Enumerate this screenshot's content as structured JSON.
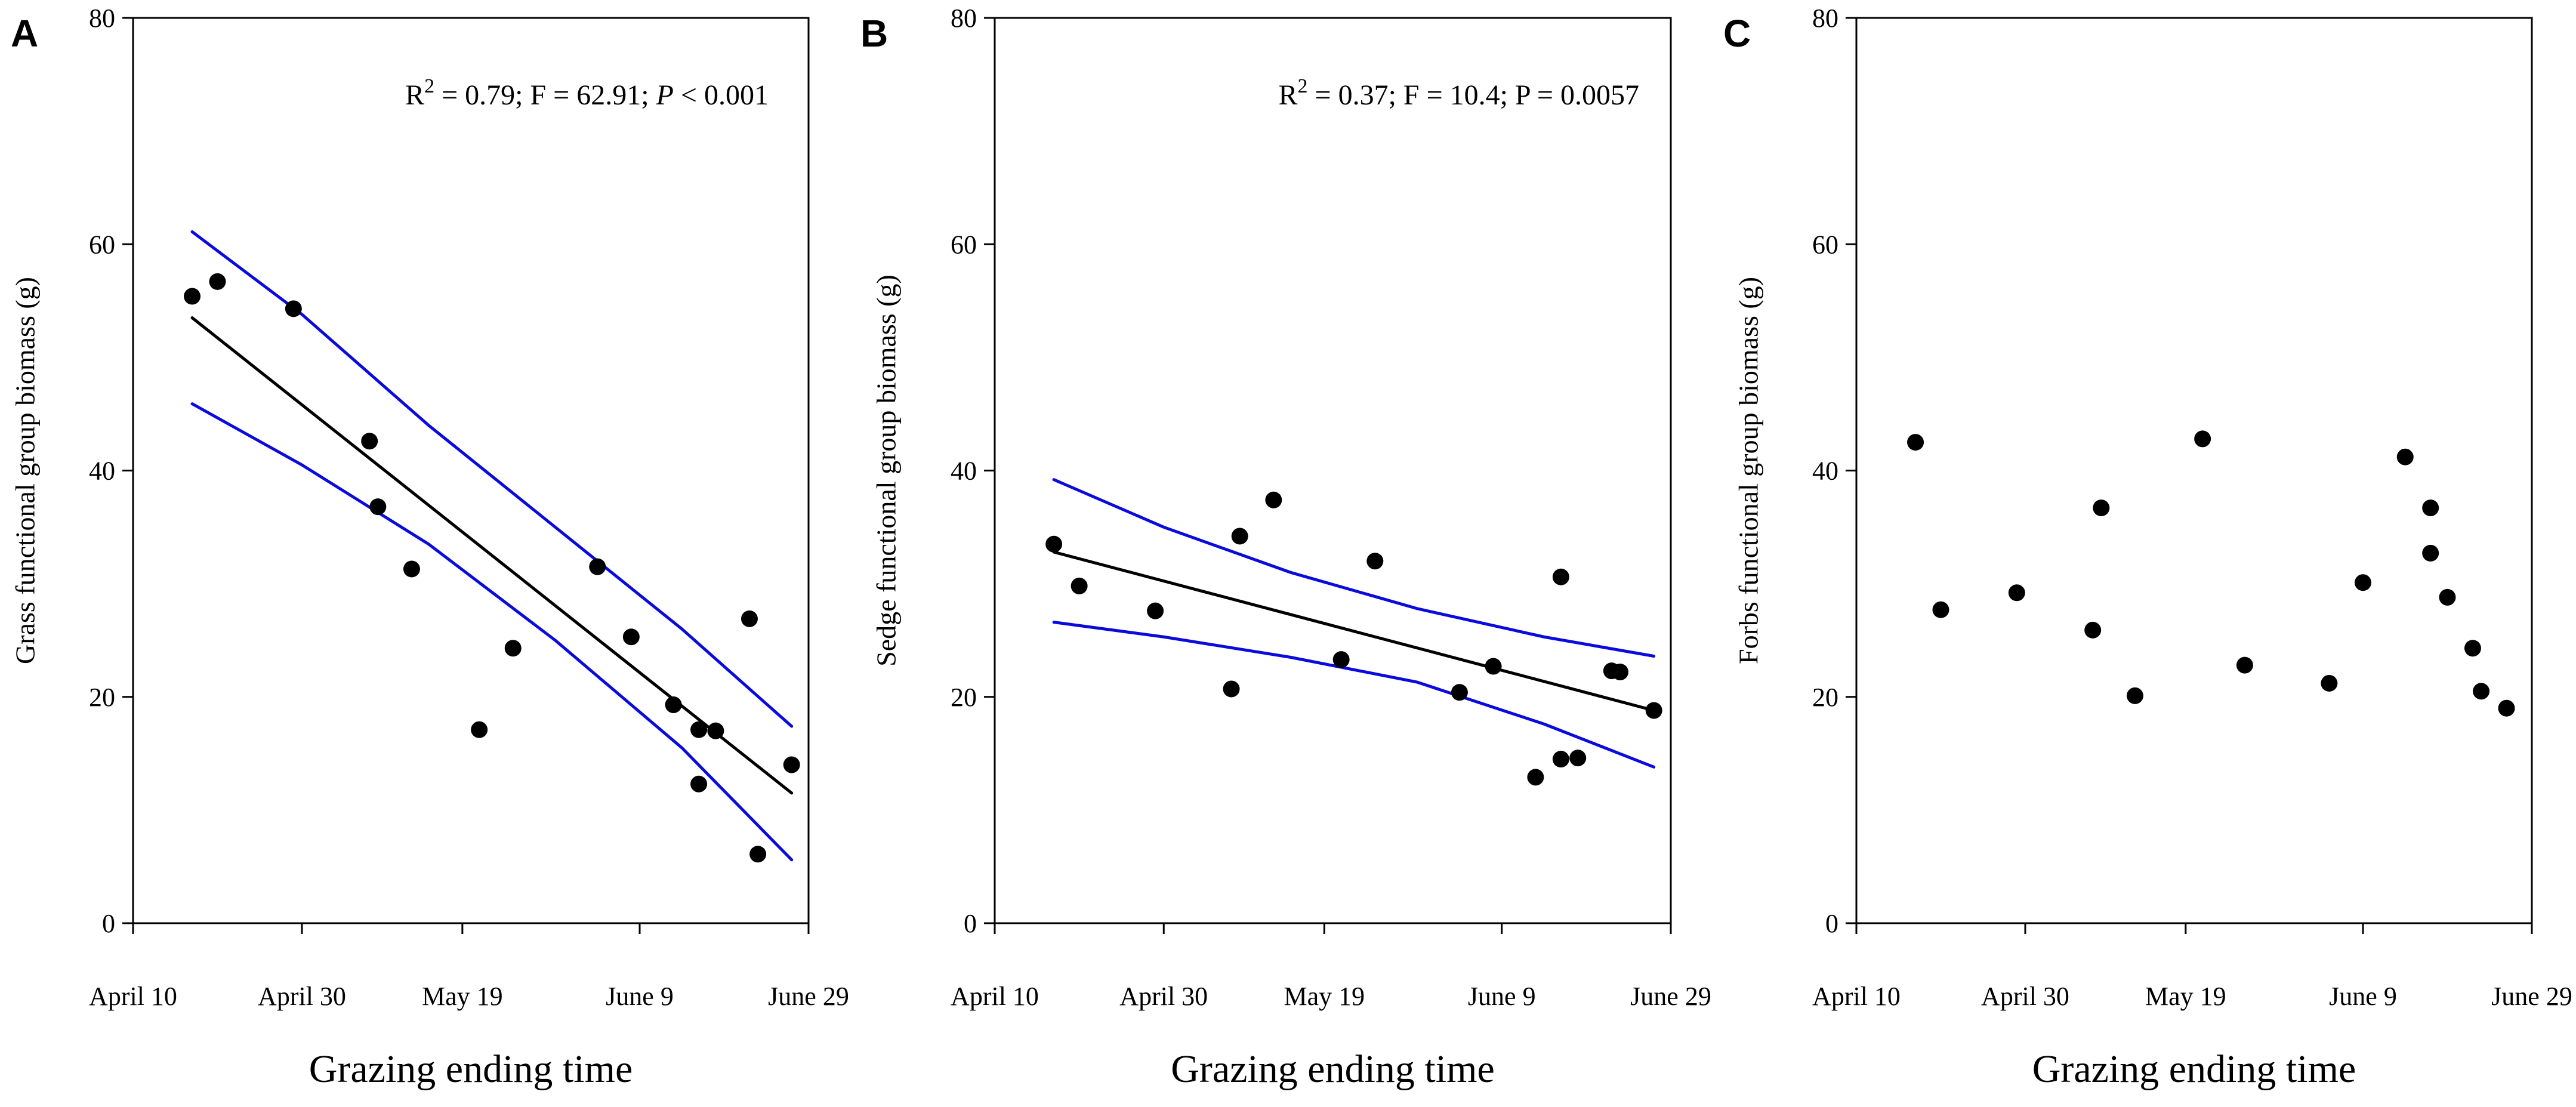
{
  "figure": {
    "xlabel": "Grazing ending time",
    "x_tick_labels": [
      "April 10",
      "April 30",
      "May 19",
      "June 9",
      "June 29"
    ],
    "y_tick_labels": [
      "0",
      "20",
      "40",
      "60",
      "80"
    ]
  },
  "chart_data": [
    {
      "panel": "A",
      "type": "scatter",
      "title": "",
      "xlabel": "Grazing ending time",
      "ylabel": "Grass functional group biomass (g)",
      "xlim": [
        0,
        80
      ],
      "ylim": [
        0,
        80
      ],
      "x_ticks": [
        0,
        20,
        39,
        60,
        80
      ],
      "y_ticks": [
        0,
        20,
        40,
        60,
        80
      ],
      "stats": {
        "r2_label": "R",
        "r2_sup": "2",
        "r2_rest": " = 0.79; F = 62.91; ",
        "p_label": "P",
        "p_rest": " < 0.001"
      },
      "points": [
        {
          "x": 7,
          "y": 55.4
        },
        {
          "x": 10,
          "y": 56.7
        },
        {
          "x": 19,
          "y": 54.3
        },
        {
          "x": 28,
          "y": 42.6
        },
        {
          "x": 29,
          "y": 36.8
        },
        {
          "x": 33,
          "y": 31.3
        },
        {
          "x": 41,
          "y": 17.1
        },
        {
          "x": 45,
          "y": 24.3
        },
        {
          "x": 55,
          "y": 31.5
        },
        {
          "x": 59,
          "y": 25.3
        },
        {
          "x": 64,
          "y": 19.3
        },
        {
          "x": 67,
          "y": 17.1
        },
        {
          "x": 67,
          "y": 12.3
        },
        {
          "x": 69,
          "y": 17.0
        },
        {
          "x": 73,
          "y": 26.9
        },
        {
          "x": 74,
          "y": 6.1
        },
        {
          "x": 78,
          "y": 14.0
        }
      ],
      "fit": {
        "x": [
          7,
          78
        ],
        "y": [
          53.5,
          11.5
        ]
      },
      "ci_upper": {
        "x": [
          7,
          20,
          35,
          50,
          65,
          78
        ],
        "y": [
          61.1,
          53.8,
          44.0,
          35.0,
          26.0,
          17.4
        ]
      },
      "ci_lower": {
        "x": [
          7,
          20,
          35,
          50,
          65,
          78
        ],
        "y": [
          45.9,
          40.5,
          33.5,
          25.0,
          15.5,
          5.6
        ]
      },
      "colors": {
        "points": "#000000",
        "fit": "#000000",
        "ci": "#0a0adc"
      }
    },
    {
      "panel": "B",
      "type": "scatter",
      "title": "",
      "xlabel": "Grazing ending time",
      "ylabel": "Sedge functional group biomass (g)",
      "xlim": [
        0,
        80
      ],
      "ylim": [
        0,
        80
      ],
      "x_ticks": [
        0,
        20,
        39,
        60,
        80
      ],
      "y_ticks": [
        0,
        20,
        40,
        60,
        80
      ],
      "stats": {
        "r2_label": "R",
        "r2_sup": "2",
        "r2_rest": " = 0.37; F = 10.4; P = 0.0057",
        "p_label": "",
        "p_rest": ""
      },
      "points": [
        {
          "x": 7,
          "y": 33.5
        },
        {
          "x": 10,
          "y": 29.8
        },
        {
          "x": 19,
          "y": 27.6
        },
        {
          "x": 28,
          "y": 20.7
        },
        {
          "x": 29,
          "y": 34.2
        },
        {
          "x": 33,
          "y": 37.4
        },
        {
          "x": 41,
          "y": 23.3
        },
        {
          "x": 45,
          "y": 32.0
        },
        {
          "x": 55,
          "y": 20.4
        },
        {
          "x": 59,
          "y": 22.7
        },
        {
          "x": 64,
          "y": 12.9
        },
        {
          "x": 67,
          "y": 14.5
        },
        {
          "x": 67,
          "y": 30.6
        },
        {
          "x": 69,
          "y": 14.6
        },
        {
          "x": 73,
          "y": 22.3
        },
        {
          "x": 74,
          "y": 22.2
        },
        {
          "x": 78,
          "y": 18.8
        }
      ],
      "fit": {
        "x": [
          7,
          78
        ],
        "y": [
          32.8,
          18.8
        ]
      },
      "ci_upper": {
        "x": [
          7,
          20,
          35,
          50,
          65,
          78
        ],
        "y": [
          39.2,
          35.0,
          31.0,
          27.8,
          25.3,
          23.6
        ]
      },
      "ci_lower": {
        "x": [
          7,
          20,
          35,
          50,
          65,
          78
        ],
        "y": [
          26.6,
          25.3,
          23.5,
          21.3,
          17.6,
          13.8
        ]
      },
      "colors": {
        "points": "#000000",
        "fit": "#000000",
        "ci": "#0a0adc"
      }
    },
    {
      "panel": "C",
      "type": "scatter",
      "title": "",
      "xlabel": "Grazing ending time",
      "ylabel": "Forbs functional group biomass (g)",
      "xlim": [
        0,
        80
      ],
      "ylim": [
        0,
        80
      ],
      "x_ticks": [
        0,
        20,
        39,
        60,
        80
      ],
      "y_ticks": [
        0,
        20,
        40,
        60,
        80
      ],
      "stats": null,
      "points": [
        {
          "x": 7,
          "y": 42.5
        },
        {
          "x": 10,
          "y": 27.7
        },
        {
          "x": 19,
          "y": 29.2
        },
        {
          "x": 28,
          "y": 25.9
        },
        {
          "x": 29,
          "y": 36.7
        },
        {
          "x": 33,
          "y": 20.1
        },
        {
          "x": 41,
          "y": 42.8
        },
        {
          "x": 46,
          "y": 22.8
        },
        {
          "x": 56,
          "y": 21.2
        },
        {
          "x": 60,
          "y": 30.1
        },
        {
          "x": 65,
          "y": 41.2
        },
        {
          "x": 68,
          "y": 36.7
        },
        {
          "x": 68,
          "y": 32.7
        },
        {
          "x": 70,
          "y": 28.8
        },
        {
          "x": 73,
          "y": 24.3
        },
        {
          "x": 74,
          "y": 20.5
        },
        {
          "x": 77,
          "y": 19.0
        }
      ],
      "fit": null,
      "ci_upper": null,
      "ci_lower": null,
      "colors": {
        "points": "#000000"
      }
    }
  ]
}
